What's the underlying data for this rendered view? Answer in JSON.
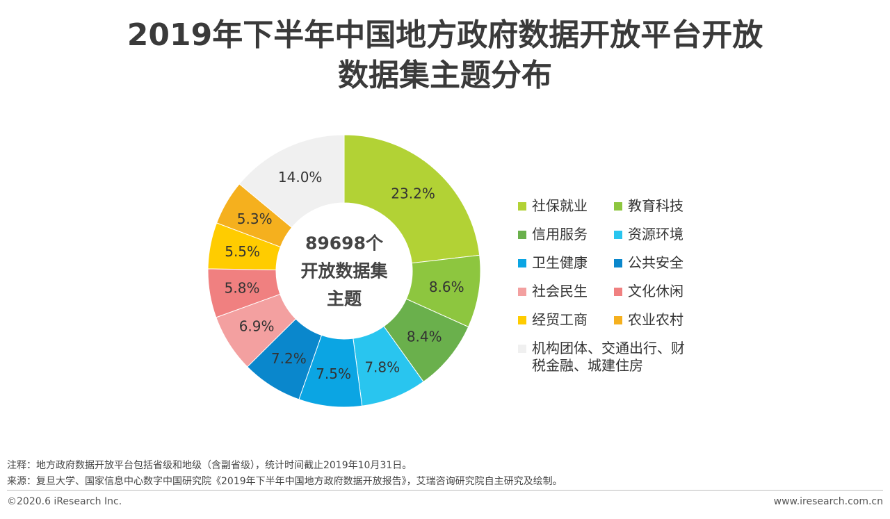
{
  "title": {
    "line1": "2019年下半年中国地方政府数据开放平台开放",
    "line2": "数据集主题分布"
  },
  "chart_data": {
    "type": "pie",
    "center_label": [
      "89698个",
      "开放数据集",
      "主题"
    ],
    "slices": [
      {
        "name": "社保就业",
        "value": 23.2,
        "label": "23.2%",
        "color": "#b2d235"
      },
      {
        "name": "教育科技",
        "value": 8.6,
        "label": "8.6%",
        "color": "#8dc63f"
      },
      {
        "name": "信用服务",
        "value": 8.4,
        "label": "8.4%",
        "color": "#6ab04c"
      },
      {
        "name": "资源环境",
        "value": 7.8,
        "label": "7.8%",
        "color": "#29c5ef"
      },
      {
        "name": "卫生健康",
        "value": 7.5,
        "label": "7.5%",
        "color": "#0ba5e3"
      },
      {
        "name": "公共安全",
        "value": 7.2,
        "label": "7.2%",
        "color": "#0a87cc"
      },
      {
        "name": "社会民生",
        "value": 6.9,
        "label": "6.9%",
        "color": "#f3a0a0"
      },
      {
        "name": "文化休闲",
        "value": 5.8,
        "label": "5.8%",
        "color": "#f08080"
      },
      {
        "name": "经贸工商",
        "value": 5.5,
        "label": "5.5%",
        "color": "#ffcc00"
      },
      {
        "name": "农业农村",
        "value": 5.3,
        "label": "5.3%",
        "color": "#f5b01e"
      },
      {
        "name": "机构团体、交通出行、财税金融、城建住房",
        "value": 14.0,
        "label": "14.0%",
        "color": "#f0f0f0"
      }
    ]
  },
  "legend": [
    {
      "label": "社保就业",
      "color": "#b2d235"
    },
    {
      "label": "教育科技",
      "color": "#8dc63f"
    },
    {
      "label": "信用服务",
      "color": "#6ab04c"
    },
    {
      "label": "资源环境",
      "color": "#29c5ef"
    },
    {
      "label": "卫生健康",
      "color": "#0ba5e3"
    },
    {
      "label": "公共安全",
      "color": "#0a87cc"
    },
    {
      "label": "社会民生",
      "color": "#f3a0a0"
    },
    {
      "label": "文化休闲",
      "color": "#f08080"
    },
    {
      "label": "经贸工商",
      "color": "#ffcc00"
    },
    {
      "label": "农业农村",
      "color": "#f5b01e"
    },
    {
      "label": "机构团体、交通出行、财税金融、城建住房",
      "color": "#f0f0f0"
    }
  ],
  "notes": {
    "note": "注释：地方政府数据开放平台包括省级和地级（含副省级），统计时间截止2019年10月31日。",
    "source": "来源：复旦大学、国家信息中心数字中国研究院《2019年下半年中国地方政府数据开放报告》，艾瑞咨询研究院自主研究及绘制。"
  },
  "footer": {
    "copyright": "©2020.6 iResearch Inc.",
    "website": "www.iresearch.com.cn"
  }
}
